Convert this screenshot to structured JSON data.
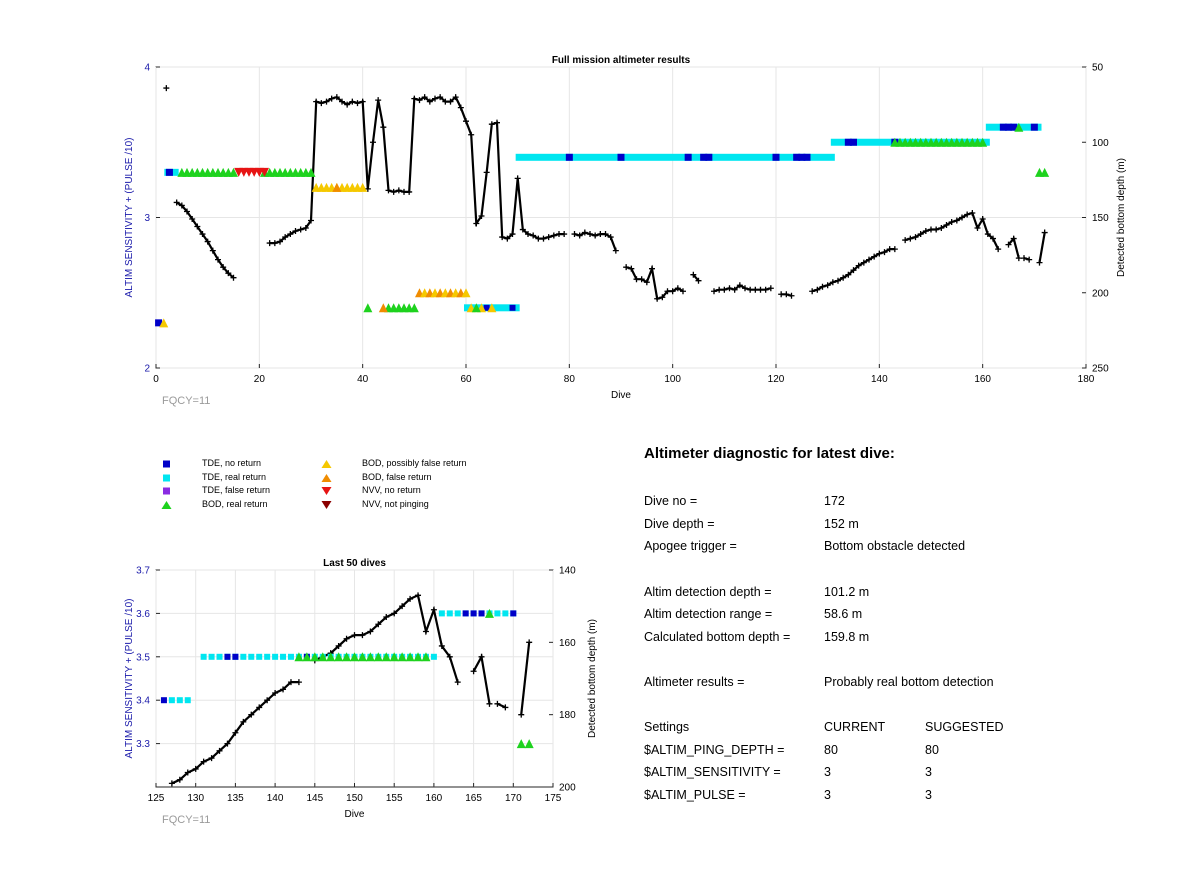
{
  "colors": {
    "tde_no_return": "#0000c8",
    "tde_real_return": "#00e6f0",
    "tde_false_return": "#8a2be2",
    "bod_real_return": "#1ed21e",
    "bod_possibly_false": "#f5c800",
    "bod_false_return": "#f08c00",
    "nvv_no_return": "#e61414",
    "nvv_not_pinging": "#8b0000",
    "axis_left": "#1a1aaa",
    "depth_line": "#000000"
  },
  "legend": [
    {
      "key": "tde_no_return",
      "label": "TDE, no return",
      "shape": "square"
    },
    {
      "key": "tde_real_return",
      "label": "TDE, real return",
      "shape": "square"
    },
    {
      "key": "tde_false_return",
      "label": "TDE, false return",
      "shape": "square"
    },
    {
      "key": "bod_real_return",
      "label": "BOD, real return",
      "shape": "triangle-up"
    },
    {
      "key": "bod_possibly_false",
      "label": "BOD, possibly false return",
      "shape": "triangle-up"
    },
    {
      "key": "bod_false_return",
      "label": "BOD, false return",
      "shape": "triangle-up"
    },
    {
      "key": "nvv_no_return",
      "label": "NVV, no return",
      "shape": "triangle-down"
    },
    {
      "key": "nvv_not_pinging",
      "label": "NVV, not pinging",
      "shape": "triangle-down"
    }
  ],
  "diagnostic": {
    "title": "Altimeter diagnostic for latest dive:",
    "dive_no_label": "Dive no =",
    "dive_no": "172",
    "dive_depth_label": "Dive depth =",
    "dive_depth": "152 m",
    "apogee_label": "Apogee trigger =",
    "apogee": "Bottom obstacle detected",
    "detect_depth_label": "Altim detection depth =",
    "detect_depth": "101.2 m",
    "detect_range_label": "Altim detection range =",
    "detect_range": "58.6 m",
    "calc_depth_label": "Calculated bottom depth =",
    "calc_depth": "159.8 m",
    "results_label": "Altimeter results =",
    "results": "Probably real bottom detection",
    "settings_label": "Settings",
    "current_label": "CURRENT",
    "suggested_label": "SUGGESTED",
    "ping_depth_label": "$ALTIM_PING_DEPTH =",
    "ping_depth_current": "80",
    "ping_depth_suggested": "80",
    "sensitivity_label": "$ALTIM_SENSITIVITY =",
    "sensitivity_current": "3",
    "sensitivity_suggested": "3",
    "pulse_label": "$ALTIM_PULSE =",
    "pulse_current": "3",
    "pulse_suggested": "3"
  },
  "chart_data": [
    {
      "type": "scatter",
      "title": "Full mission altimeter results",
      "xlabel": "Dive",
      "ylabel": "ALTIM SENSITIVITY + (PULSE /10)",
      "ylabel_right": "Detected bottom depth (m)",
      "annotation": "FQCY=11",
      "xlim": [
        0,
        180
      ],
      "xticks": [
        0,
        20,
        40,
        60,
        80,
        100,
        120,
        140,
        160,
        180
      ],
      "ylim": [
        2,
        4
      ],
      "yticks": [
        2,
        3,
        4
      ],
      "ylim_right": [
        250,
        50
      ],
      "yticks_right": [
        50,
        100,
        150,
        200,
        250
      ],
      "grid": true,
      "depth_series": [
        {
          "x": [
            2
          ],
          "y": [
            64
          ]
        },
        {
          "x": [
            4,
            5,
            6,
            7,
            8,
            9,
            10,
            11,
            12,
            13,
            14,
            15
          ],
          "y": [
            140,
            142,
            146,
            151,
            156,
            161,
            166,
            172,
            178,
            183,
            187,
            190
          ]
        },
        {
          "x": [
            22,
            23,
            24,
            25,
            26,
            27,
            28,
            29,
            30,
            31,
            32,
            33,
            34,
            35,
            36,
            37,
            38,
            39,
            40,
            41,
            42,
            43,
            44,
            45,
            46,
            47,
            48,
            49,
            50,
            51,
            52,
            53,
            54,
            55,
            56,
            57,
            58,
            59,
            60,
            61,
            62,
            63,
            64,
            65,
            66,
            67,
            68,
            69,
            70,
            71,
            72,
            73,
            74,
            75,
            76,
            77,
            78,
            79
          ],
          "y": [
            167,
            167,
            166,
            163,
            161,
            159,
            158,
            157,
            152,
            73,
            74,
            73,
            71,
            70,
            73,
            75,
            73,
            74,
            73,
            131,
            100,
            72,
            90,
            132,
            133,
            132,
            133,
            133,
            71,
            72,
            70,
            73,
            71,
            70,
            73,
            73,
            70,
            77,
            86,
            95,
            154,
            149,
            120,
            88,
            87,
            163,
            164,
            161,
            124,
            158,
            161,
            162,
            164,
            164,
            163,
            162,
            161,
            161
          ]
        },
        {
          "x": [
            81,
            82,
            83,
            84,
            85,
            86,
            87,
            88,
            89
          ],
          "y": [
            161,
            162,
            160,
            161,
            162,
            161,
            161,
            163,
            172
          ]
        },
        {
          "x": [
            91,
            92,
            93,
            94,
            95,
            96,
            97,
            98,
            99,
            100,
            101,
            102
          ],
          "y": [
            183,
            184,
            191,
            191,
            193,
            184,
            204,
            203,
            199,
            199,
            197,
            199
          ]
        },
        {
          "x": [
            104,
            105
          ],
          "y": [
            188,
            192
          ]
        },
        {
          "x": [
            108,
            109,
            110,
            111,
            112,
            113,
            114,
            115,
            116,
            117,
            118,
            119
          ],
          "y": [
            199,
            198,
            198,
            197,
            198,
            195,
            197,
            198,
            198,
            198,
            198,
            197
          ]
        },
        {
          "x": [
            121,
            122,
            123
          ],
          "y": [
            201,
            201,
            202
          ]
        },
        {
          "x": [
            127,
            128,
            129,
            130,
            131,
            132,
            133,
            134,
            135,
            136,
            137,
            138,
            139,
            140,
            141,
            142,
            143
          ],
          "y": [
            199,
            198,
            196,
            195,
            193,
            192,
            190,
            188,
            185,
            182,
            180,
            178,
            176,
            174,
            173,
            171,
            171
          ]
        },
        {
          "x": [
            145,
            146,
            147,
            148,
            149,
            150,
            151,
            152,
            153,
            154,
            155,
            156,
            157,
            158,
            159,
            160,
            161,
            162,
            163
          ],
          "y": [
            165,
            164,
            163,
            161,
            159,
            158,
            158,
            157,
            155,
            153,
            152,
            150,
            148,
            147,
            157,
            151,
            161,
            164,
            171
          ]
        },
        {
          "x": [
            165,
            166,
            167
          ],
          "y": [
            168,
            164,
            177
          ]
        },
        {
          "x": [
            168,
            169
          ],
          "y": [
            177,
            178
          ]
        },
        {
          "x": [
            171,
            172
          ],
          "y": [
            180,
            160
          ]
        }
      ],
      "markers": [
        {
          "key": "tde_no_return",
          "shape": "square",
          "x": [
            1,
            2.6,
            134,
            135,
            143,
            164,
            165,
            166,
            170,
            80,
            90,
            103,
            106,
            107,
            120,
            124,
            125,
            126
          ]
        },
        {
          "x": [
            1
          ],
          "key": "bod_possibly_false",
          "shape": "triangle-up",
          "sy": [
            2.3
          ]
        },
        {
          "key": "tde_no_return",
          "shape": "square",
          "x": [
            0.5
          ],
          "sy": [
            2.3
          ]
        }
      ],
      "segments": [
        {
          "key": "tde_real_return",
          "y": 3.3,
          "from": 2,
          "to": 4
        },
        {
          "key": "tde_real_return",
          "y": 3.4,
          "from": 70,
          "to": 131
        },
        {
          "key": "tde_real_return",
          "y": 3.5,
          "from": 131,
          "to": 161
        },
        {
          "key": "tde_real_return",
          "y": 3.6,
          "from": 161,
          "to": 171
        },
        {
          "key": "tde_real_return",
          "y": 2.4,
          "from": 60,
          "to": 70
        }
      ]
    },
    {
      "type": "scatter",
      "title": "Last 50 dives",
      "xlabel": "Dive",
      "ylabel": "ALTIM SENSITIVITY + (PULSE /10)",
      "ylabel_right": "Detected bottom depth (m)",
      "annotation": "FQCY=11",
      "xlim": [
        125,
        175
      ],
      "xticks": [
        125,
        130,
        135,
        140,
        145,
        150,
        155,
        160,
        165,
        170,
        175
      ],
      "ylim": [
        3.2,
        3.7
      ],
      "yticks": [
        3.3,
        3.4,
        3.5,
        3.6,
        3.7
      ],
      "ylim_right": [
        200,
        140
      ],
      "yticks_right": [
        140,
        160,
        180,
        200
      ],
      "grid": true
    }
  ]
}
